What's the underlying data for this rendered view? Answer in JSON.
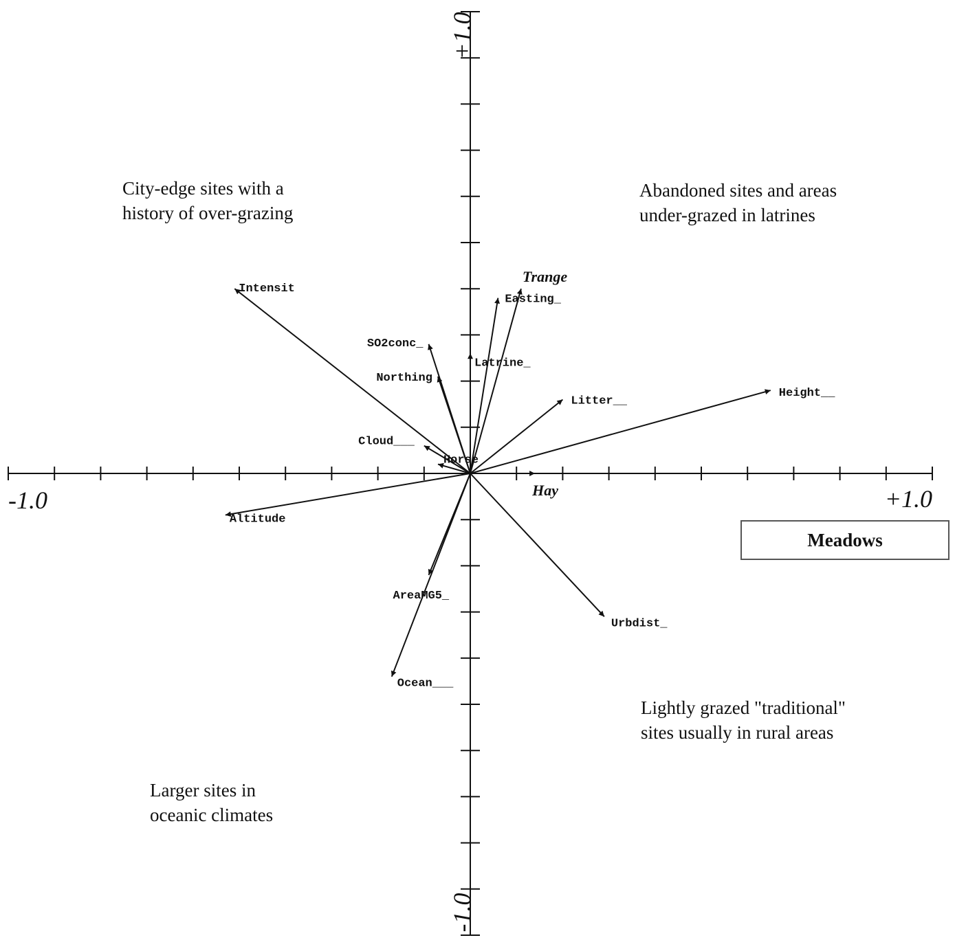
{
  "chart_data": {
    "type": "biplot",
    "title": "Meadows",
    "xlim": [
      -1.0,
      1.0
    ],
    "ylim": [
      -1.0,
      1.0
    ],
    "x_end_labels": [
      "-1.0",
      "+1.0"
    ],
    "y_end_labels": [
      "-1.0",
      "+1.0"
    ],
    "tick_step": 0.1,
    "grid": false,
    "vectors": [
      {
        "name": "Intensit",
        "x": -0.51,
        "y": 0.4
      },
      {
        "name": "SO2conc_",
        "x": -0.09,
        "y": 0.28
      },
      {
        "name": "Northing",
        "x": -0.07,
        "y": 0.21
      },
      {
        "name": "Cloud___",
        "x": -0.1,
        "y": 0.06
      },
      {
        "name": "Easting_",
        "x": 0.06,
        "y": 0.38
      },
      {
        "name": "Trange",
        "x": 0.11,
        "y": 0.4
      },
      {
        "name": "Latrine_",
        "x": 0.0,
        "y": 0.26
      },
      {
        "name": "Litter__",
        "x": 0.2,
        "y": 0.16
      },
      {
        "name": "Height__",
        "x": 0.65,
        "y": 0.18
      },
      {
        "name": "Horse",
        "x": -0.07,
        "y": 0.02
      },
      {
        "name": "Hay",
        "x": 0.14,
        "y": 0.0
      },
      {
        "name": "Altitude",
        "x": -0.53,
        "y": -0.09
      },
      {
        "name": "AreaMG5_",
        "x": -0.09,
        "y": -0.22
      },
      {
        "name": "Ocean___",
        "x": -0.17,
        "y": -0.44
      },
      {
        "name": "Urbdist_",
        "x": 0.29,
        "y": -0.31
      }
    ],
    "quadrant_notes": [
      "City-edge sites with a\nhistory of over-grazing",
      "Abandoned sites and areas\nunder-grazed in latrines",
      "Lightly grazed \"traditional\"\nsites usually in rural areas",
      "Larger sites in\noceanic climates"
    ]
  }
}
